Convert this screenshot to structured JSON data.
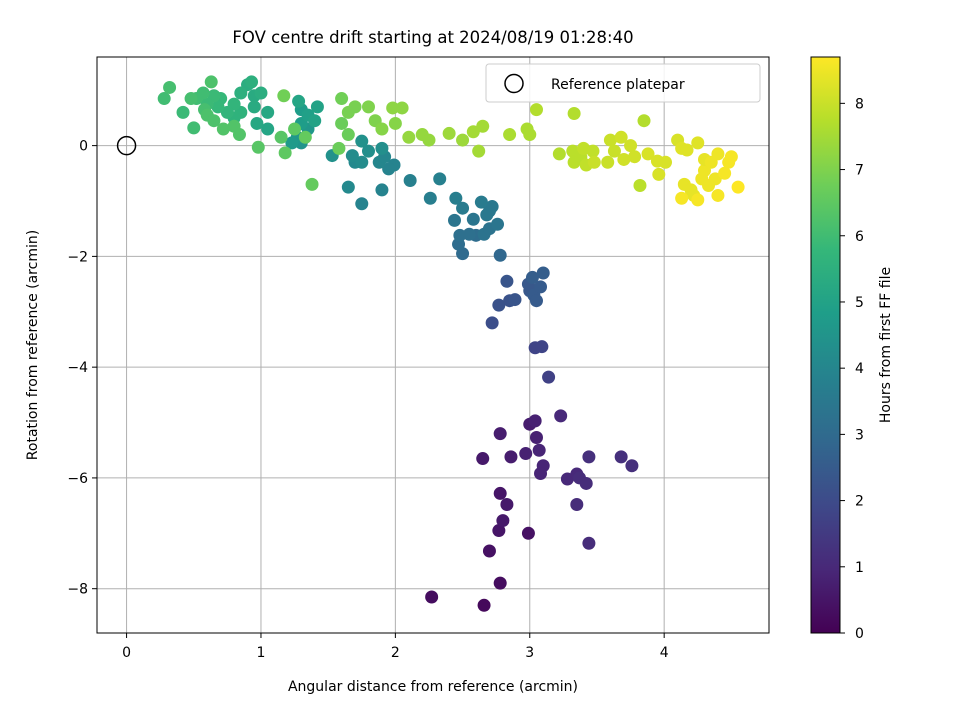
{
  "chart_data": {
    "type": "scatter",
    "title": "FOV centre drift starting at 2024/08/19 01:28:40",
    "xlabel": "Angular distance from reference (arcmin)",
    "ylabel": "Rotation from reference (arcmin)",
    "xlim": [
      -0.22,
      4.78
    ],
    "ylim": [
      -8.8,
      1.6
    ],
    "xticks": [
      0,
      1,
      2,
      3,
      4
    ],
    "yticks": [
      -8,
      -6,
      -4,
      -2,
      0
    ],
    "grid": true,
    "legend": {
      "position": "top-right",
      "entries": [
        "Reference platepar"
      ]
    },
    "reference_point": {
      "name": "Reference platepar",
      "x": 0,
      "y": 0
    },
    "colorbar": {
      "label": "Hours from first FF file",
      "min": 0,
      "max": 8.7,
      "ticks": [
        0,
        1,
        2,
        3,
        4,
        5,
        6,
        7,
        8
      ],
      "colormap": "viridis"
    },
    "points": [
      {
        "x": 2.27,
        "y": -8.15,
        "c": 0.3
      },
      {
        "x": 2.66,
        "y": -8.3,
        "c": 0.2
      },
      {
        "x": 2.78,
        "y": -7.9,
        "c": 0.3
      },
      {
        "x": 2.7,
        "y": -7.32,
        "c": 0.4
      },
      {
        "x": 2.77,
        "y": -6.95,
        "c": 0.5
      },
      {
        "x": 2.99,
        "y": -7.0,
        "c": 0.4
      },
      {
        "x": 2.78,
        "y": -6.28,
        "c": 0.5
      },
      {
        "x": 2.8,
        "y": -6.77,
        "c": 0.6
      },
      {
        "x": 2.83,
        "y": -6.48,
        "c": 0.6
      },
      {
        "x": 2.65,
        "y": -5.65,
        "c": 0.6
      },
      {
        "x": 2.78,
        "y": -5.2,
        "c": 0.7
      },
      {
        "x": 2.86,
        "y": -5.62,
        "c": 0.7
      },
      {
        "x": 2.97,
        "y": -5.56,
        "c": 0.8
      },
      {
        "x": 3.0,
        "y": -5.03,
        "c": 0.7
      },
      {
        "x": 3.04,
        "y": -4.97,
        "c": 0.8
      },
      {
        "x": 3.05,
        "y": -5.27,
        "c": 0.8
      },
      {
        "x": 3.07,
        "y": -5.5,
        "c": 0.9
      },
      {
        "x": 3.1,
        "y": -5.78,
        "c": 0.9
      },
      {
        "x": 3.08,
        "y": -5.92,
        "c": 0.9
      },
      {
        "x": 3.23,
        "y": -4.88,
        "c": 1.0
      },
      {
        "x": 3.28,
        "y": -6.02,
        "c": 1.0
      },
      {
        "x": 3.35,
        "y": -5.93,
        "c": 1.0
      },
      {
        "x": 3.37,
        "y": -6.0,
        "c": 1.1
      },
      {
        "x": 3.42,
        "y": -6.1,
        "c": 1.1
      },
      {
        "x": 3.35,
        "y": -6.48,
        "c": 1.1
      },
      {
        "x": 3.44,
        "y": -7.18,
        "c": 1.1
      },
      {
        "x": 3.44,
        "y": -5.62,
        "c": 1.2
      },
      {
        "x": 3.68,
        "y": -5.62,
        "c": 1.2
      },
      {
        "x": 3.76,
        "y": -5.78,
        "c": 1.2
      },
      {
        "x": 3.04,
        "y": -3.65,
        "c": 1.8
      },
      {
        "x": 3.09,
        "y": -3.63,
        "c": 1.8
      },
      {
        "x": 3.14,
        "y": -4.18,
        "c": 1.7
      },
      {
        "x": 2.72,
        "y": -3.2,
        "c": 2.1
      },
      {
        "x": 2.77,
        "y": -2.88,
        "c": 2.2
      },
      {
        "x": 2.85,
        "y": -2.8,
        "c": 2.2
      },
      {
        "x": 2.89,
        "y": -2.78,
        "c": 2.3
      },
      {
        "x": 2.83,
        "y": -2.45,
        "c": 2.3
      },
      {
        "x": 2.99,
        "y": -2.5,
        "c": 2.4
      },
      {
        "x": 3.0,
        "y": -2.62,
        "c": 2.4
      },
      {
        "x": 3.03,
        "y": -2.7,
        "c": 2.5
      },
      {
        "x": 3.05,
        "y": -2.8,
        "c": 2.5
      },
      {
        "x": 3.08,
        "y": -2.55,
        "c": 2.5
      },
      {
        "x": 3.1,
        "y": -2.3,
        "c": 2.6
      },
      {
        "x": 3.02,
        "y": -2.38,
        "c": 2.6
      },
      {
        "x": 2.78,
        "y": -1.98,
        "c": 2.9
      },
      {
        "x": 2.5,
        "y": -1.95,
        "c": 3.0
      },
      {
        "x": 2.47,
        "y": -1.78,
        "c": 3.1
      },
      {
        "x": 2.6,
        "y": -1.62,
        "c": 3.1
      },
      {
        "x": 2.55,
        "y": -1.6,
        "c": 3.2
      },
      {
        "x": 2.48,
        "y": -1.62,
        "c": 3.2
      },
      {
        "x": 2.66,
        "y": -1.6,
        "c": 3.3
      },
      {
        "x": 2.7,
        "y": -1.5,
        "c": 3.3
      },
      {
        "x": 2.76,
        "y": -1.42,
        "c": 3.4
      },
      {
        "x": 2.44,
        "y": -1.35,
        "c": 3.4
      },
      {
        "x": 2.58,
        "y": -1.33,
        "c": 3.4
      },
      {
        "x": 2.68,
        "y": -1.25,
        "c": 3.5
      },
      {
        "x": 2.7,
        "y": -1.18,
        "c": 3.5
      },
      {
        "x": 2.72,
        "y": -1.1,
        "c": 3.5
      },
      {
        "x": 2.64,
        "y": -1.02,
        "c": 3.6
      },
      {
        "x": 2.5,
        "y": -1.13,
        "c": 3.6
      },
      {
        "x": 2.45,
        "y": -0.95,
        "c": 3.7
      },
      {
        "x": 2.26,
        "y": -0.95,
        "c": 3.7
      },
      {
        "x": 2.33,
        "y": -0.6,
        "c": 3.8
      },
      {
        "x": 2.11,
        "y": -0.63,
        "c": 3.8
      },
      {
        "x": 1.99,
        "y": -0.35,
        "c": 3.9
      },
      {
        "x": 1.95,
        "y": -0.42,
        "c": 3.9
      },
      {
        "x": 1.88,
        "y": -0.3,
        "c": 4.0
      },
      {
        "x": 1.92,
        "y": -0.2,
        "c": 4.0
      },
      {
        "x": 1.9,
        "y": -0.8,
        "c": 3.9
      },
      {
        "x": 1.75,
        "y": -1.05,
        "c": 3.9
      },
      {
        "x": 1.65,
        "y": -0.75,
        "c": 4.1
      },
      {
        "x": 1.7,
        "y": -0.3,
        "c": 4.1
      },
      {
        "x": 1.75,
        "y": -0.3,
        "c": 4.2
      },
      {
        "x": 1.68,
        "y": -0.18,
        "c": 4.2
      },
      {
        "x": 1.8,
        "y": -0.1,
        "c": 4.3
      },
      {
        "x": 1.9,
        "y": -0.05,
        "c": 4.3
      },
      {
        "x": 1.75,
        "y": 0.08,
        "c": 4.4
      },
      {
        "x": 1.53,
        "y": -0.18,
        "c": 4.4
      },
      {
        "x": 1.3,
        "y": 0.05,
        "c": 4.5
      },
      {
        "x": 1.35,
        "y": 0.3,
        "c": 4.6
      },
      {
        "x": 1.27,
        "y": 0.15,
        "c": 4.6
      },
      {
        "x": 1.23,
        "y": 0.05,
        "c": 4.7
      },
      {
        "x": 1.3,
        "y": 0.4,
        "c": 4.8
      },
      {
        "x": 1.3,
        "y": 0.65,
        "c": 4.8
      },
      {
        "x": 1.35,
        "y": 0.55,
        "c": 4.9
      },
      {
        "x": 1.4,
        "y": 0.45,
        "c": 5.0
      },
      {
        "x": 1.42,
        "y": 0.7,
        "c": 5.0
      },
      {
        "x": 1.28,
        "y": 0.8,
        "c": 5.1
      },
      {
        "x": 1.05,
        "y": 0.3,
        "c": 5.1
      },
      {
        "x": 1.05,
        "y": 0.6,
        "c": 5.2
      },
      {
        "x": 0.97,
        "y": 0.4,
        "c": 5.2
      },
      {
        "x": 0.95,
        "y": 0.7,
        "c": 5.3
      },
      {
        "x": 0.95,
        "y": 0.9,
        "c": 5.3
      },
      {
        "x": 1.0,
        "y": 0.95,
        "c": 5.4
      },
      {
        "x": 0.9,
        "y": 1.1,
        "c": 5.4
      },
      {
        "x": 0.93,
        "y": 1.15,
        "c": 5.5
      },
      {
        "x": 0.85,
        "y": 0.95,
        "c": 5.5
      },
      {
        "x": 0.85,
        "y": 0.6,
        "c": 5.6
      },
      {
        "x": 0.8,
        "y": 0.5,
        "c": 5.6
      },
      {
        "x": 0.8,
        "y": 0.75,
        "c": 5.7
      },
      {
        "x": 0.75,
        "y": 0.6,
        "c": 5.7
      },
      {
        "x": 0.7,
        "y": 0.85,
        "c": 5.8
      },
      {
        "x": 0.68,
        "y": 0.7,
        "c": 5.8
      },
      {
        "x": 0.65,
        "y": 0.9,
        "c": 5.9
      },
      {
        "x": 0.6,
        "y": 0.75,
        "c": 5.9
      },
      {
        "x": 0.57,
        "y": 0.95,
        "c": 6.0
      },
      {
        "x": 0.52,
        "y": 0.85,
        "c": 6.0
      },
      {
        "x": 0.48,
        "y": 0.85,
        "c": 6.1
      },
      {
        "x": 0.58,
        "y": 0.65,
        "c": 6.1
      },
      {
        "x": 0.6,
        "y": 0.55,
        "c": 6.2
      },
      {
        "x": 0.65,
        "y": 0.45,
        "c": 6.2
      },
      {
        "x": 0.72,
        "y": 0.3,
        "c": 6.3
      },
      {
        "x": 0.8,
        "y": 0.35,
        "c": 6.3
      },
      {
        "x": 0.84,
        "y": 0.2,
        "c": 6.3
      },
      {
        "x": 0.5,
        "y": 0.32,
        "c": 6.0
      },
      {
        "x": 0.42,
        "y": 0.6,
        "c": 5.9
      },
      {
        "x": 0.28,
        "y": 0.85,
        "c": 6.0
      },
      {
        "x": 0.32,
        "y": 1.05,
        "c": 6.1
      },
      {
        "x": 0.63,
        "y": 1.15,
        "c": 6.2
      },
      {
        "x": 0.98,
        "y": -0.03,
        "c": 6.4
      },
      {
        "x": 1.15,
        "y": 0.15,
        "c": 6.4
      },
      {
        "x": 1.18,
        "y": -0.13,
        "c": 6.5
      },
      {
        "x": 1.25,
        "y": 0.3,
        "c": 6.5
      },
      {
        "x": 1.33,
        "y": 0.15,
        "c": 6.6
      },
      {
        "x": 1.38,
        "y": -0.7,
        "c": 6.6
      },
      {
        "x": 1.58,
        "y": -0.05,
        "c": 6.7
      },
      {
        "x": 1.65,
        "y": 0.2,
        "c": 6.7
      },
      {
        "x": 1.6,
        "y": 0.4,
        "c": 6.7
      },
      {
        "x": 1.17,
        "y": 0.9,
        "c": 6.8
      },
      {
        "x": 1.6,
        "y": 0.85,
        "c": 6.8
      },
      {
        "x": 1.65,
        "y": 0.6,
        "c": 6.9
      },
      {
        "x": 1.7,
        "y": 0.7,
        "c": 6.9
      },
      {
        "x": 1.8,
        "y": 0.7,
        "c": 7.0
      },
      {
        "x": 1.85,
        "y": 0.45,
        "c": 7.0
      },
      {
        "x": 1.9,
        "y": 0.3,
        "c": 7.1
      },
      {
        "x": 2.0,
        "y": 0.4,
        "c": 7.1
      },
      {
        "x": 1.98,
        "y": 0.68,
        "c": 7.2
      },
      {
        "x": 2.05,
        "y": 0.68,
        "c": 7.2
      },
      {
        "x": 2.1,
        "y": 0.15,
        "c": 7.3
      },
      {
        "x": 2.2,
        "y": 0.2,
        "c": 7.3
      },
      {
        "x": 2.25,
        "y": 0.1,
        "c": 7.3
      },
      {
        "x": 2.4,
        "y": 0.22,
        "c": 7.4
      },
      {
        "x": 2.5,
        "y": 0.1,
        "c": 7.4
      },
      {
        "x": 2.58,
        "y": 0.25,
        "c": 7.5
      },
      {
        "x": 2.62,
        "y": -0.1,
        "c": 7.5
      },
      {
        "x": 2.65,
        "y": 0.35,
        "c": 7.5
      },
      {
        "x": 2.85,
        "y": 0.2,
        "c": 7.6
      },
      {
        "x": 2.98,
        "y": 0.3,
        "c": 7.6
      },
      {
        "x": 3.0,
        "y": 0.2,
        "c": 7.6
      },
      {
        "x": 3.05,
        "y": 0.65,
        "c": 7.7
      },
      {
        "x": 3.22,
        "y": -0.15,
        "c": 7.7
      },
      {
        "x": 3.33,
        "y": 0.58,
        "c": 7.7
      },
      {
        "x": 3.32,
        "y": -0.1,
        "c": 7.8
      },
      {
        "x": 3.33,
        "y": -0.3,
        "c": 7.8
      },
      {
        "x": 3.38,
        "y": -0.2,
        "c": 7.8
      },
      {
        "x": 3.4,
        "y": -0.05,
        "c": 7.9
      },
      {
        "x": 3.42,
        "y": -0.35,
        "c": 7.9
      },
      {
        "x": 3.47,
        "y": -0.1,
        "c": 7.9
      },
      {
        "x": 3.48,
        "y": -0.3,
        "c": 8.0
      },
      {
        "x": 3.58,
        "y": -0.3,
        "c": 8.0
      },
      {
        "x": 3.6,
        "y": 0.1,
        "c": 8.0
      },
      {
        "x": 3.63,
        "y": -0.1,
        "c": 8.0
      },
      {
        "x": 3.68,
        "y": 0.15,
        "c": 8.1
      },
      {
        "x": 3.7,
        "y": -0.25,
        "c": 8.1
      },
      {
        "x": 3.75,
        "y": 0.0,
        "c": 8.1
      },
      {
        "x": 3.78,
        "y": -0.2,
        "c": 8.1
      },
      {
        "x": 3.82,
        "y": -0.72,
        "c": 7.8
      },
      {
        "x": 3.85,
        "y": 0.45,
        "c": 7.7
      },
      {
        "x": 3.88,
        "y": -0.15,
        "c": 8.2
      },
      {
        "x": 3.95,
        "y": -0.28,
        "c": 8.2
      },
      {
        "x": 3.96,
        "y": -0.52,
        "c": 8.2
      },
      {
        "x": 4.01,
        "y": -0.3,
        "c": 8.2
      },
      {
        "x": 4.1,
        "y": 0.1,
        "c": 8.2
      },
      {
        "x": 4.13,
        "y": -0.05,
        "c": 8.3
      },
      {
        "x": 4.17,
        "y": -0.08,
        "c": 8.3
      },
      {
        "x": 4.25,
        "y": 0.05,
        "c": 8.3
      },
      {
        "x": 4.15,
        "y": -0.7,
        "c": 8.4
      },
      {
        "x": 4.2,
        "y": -0.8,
        "c": 8.4
      },
      {
        "x": 4.22,
        "y": -0.9,
        "c": 8.4
      },
      {
        "x": 4.28,
        "y": -0.6,
        "c": 8.5
      },
      {
        "x": 4.3,
        "y": -0.45,
        "c": 8.5
      },
      {
        "x": 4.33,
        "y": -0.72,
        "c": 8.5
      },
      {
        "x": 4.38,
        "y": -0.6,
        "c": 8.5
      },
      {
        "x": 4.4,
        "y": -0.9,
        "c": 8.6
      },
      {
        "x": 4.45,
        "y": -0.5,
        "c": 8.6
      },
      {
        "x": 4.48,
        "y": -0.3,
        "c": 8.6
      },
      {
        "x": 4.5,
        "y": -0.2,
        "c": 8.6
      },
      {
        "x": 4.55,
        "y": -0.75,
        "c": 8.7
      },
      {
        "x": 4.3,
        "y": -0.25,
        "c": 8.4
      },
      {
        "x": 4.35,
        "y": -0.3,
        "c": 8.5
      },
      {
        "x": 4.4,
        "y": -0.15,
        "c": 8.5
      },
      {
        "x": 4.13,
        "y": -0.95,
        "c": 8.6
      },
      {
        "x": 4.25,
        "y": -0.98,
        "c": 8.6
      }
    ]
  }
}
